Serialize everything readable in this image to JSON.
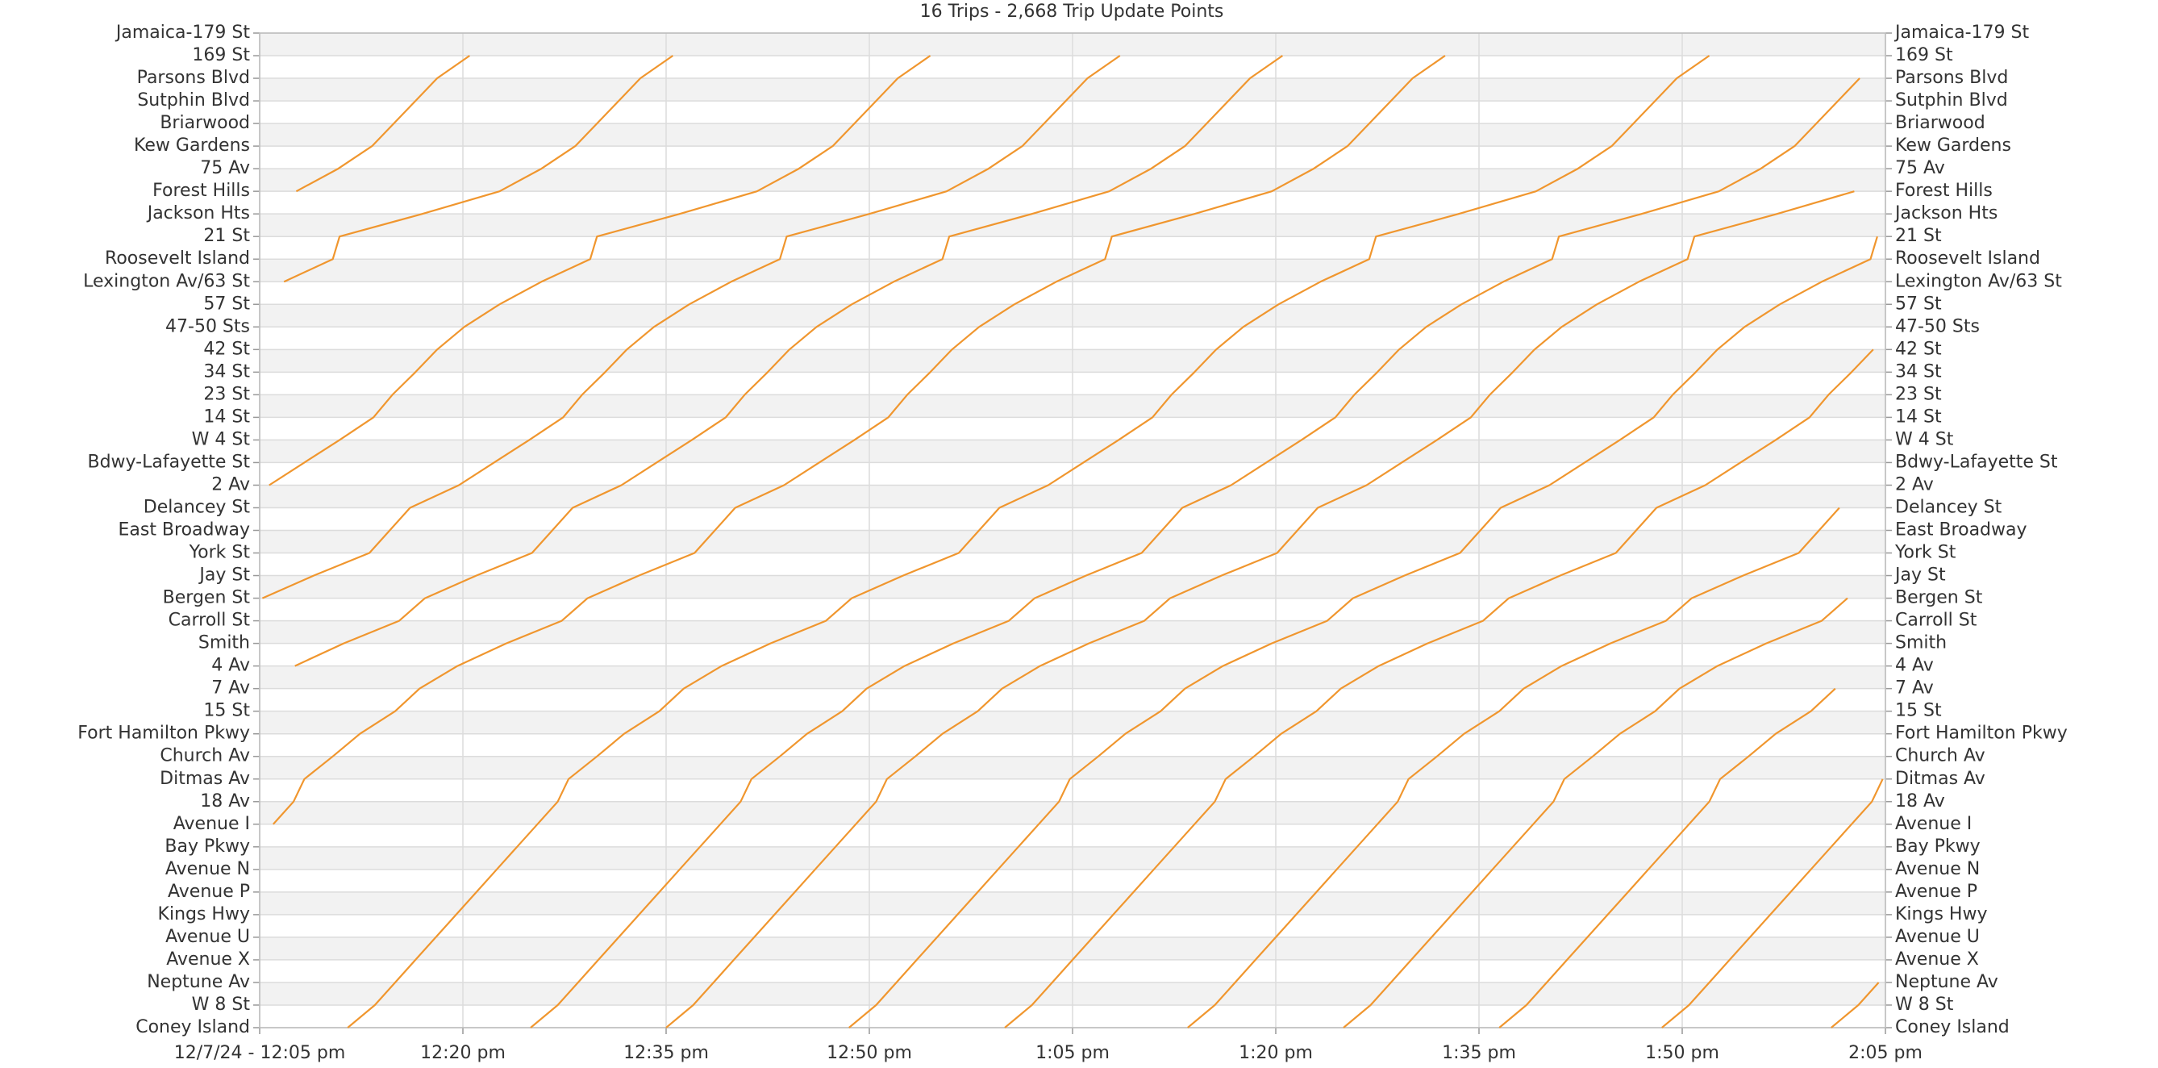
{
  "chart_data": {
    "type": "line",
    "title": "16 Trips - 2,668 Trip Update Points",
    "color": "#f0962e",
    "grid": true,
    "xlim": [
      725,
      845
    ],
    "xticks": [
      {
        "value": 725,
        "label": "12/7/24 - 12:05 pm"
      },
      {
        "value": 740,
        "label": "12:20 pm"
      },
      {
        "value": 755,
        "label": "12:35 pm"
      },
      {
        "value": 770,
        "label": "12:50 pm"
      },
      {
        "value": 785,
        "label": "1:05 pm"
      },
      {
        "value": 800,
        "label": "1:20 pm"
      },
      {
        "value": 815,
        "label": "1:35 pm"
      },
      {
        "value": 830,
        "label": "1:50 pm"
      },
      {
        "value": 845,
        "label": "2:05 pm"
      }
    ],
    "ylim": [
      0,
      44
    ],
    "yticks": [
      {
        "value": 0,
        "label": "Coney Island"
      },
      {
        "value": 1,
        "label": "W 8 St"
      },
      {
        "value": 2,
        "label": "Neptune Av"
      },
      {
        "value": 3,
        "label": "Avenue X"
      },
      {
        "value": 4,
        "label": "Avenue U"
      },
      {
        "value": 5,
        "label": "Kings Hwy"
      },
      {
        "value": 6,
        "label": "Avenue P"
      },
      {
        "value": 7,
        "label": "Avenue N"
      },
      {
        "value": 8,
        "label": "Bay Pkwy"
      },
      {
        "value": 9,
        "label": "Avenue I"
      },
      {
        "value": 10,
        "label": "18 Av"
      },
      {
        "value": 11,
        "label": "Ditmas Av"
      },
      {
        "value": 12,
        "label": "Church Av"
      },
      {
        "value": 13,
        "label": "Fort Hamilton Pkwy"
      },
      {
        "value": 14,
        "label": "15 St"
      },
      {
        "value": 15,
        "label": "7 Av"
      },
      {
        "value": 16,
        "label": "4 Av"
      },
      {
        "value": 17,
        "label": "Smith"
      },
      {
        "value": 18,
        "label": "Carroll St"
      },
      {
        "value": 19,
        "label": "Bergen St"
      },
      {
        "value": 20,
        "label": "Jay St"
      },
      {
        "value": 21,
        "label": "York St"
      },
      {
        "value": 22,
        "label": "East Broadway"
      },
      {
        "value": 23,
        "label": "Delancey St"
      },
      {
        "value": 24,
        "label": "2 Av"
      },
      {
        "value": 25,
        "label": "Bdwy-Lafayette St"
      },
      {
        "value": 26,
        "label": "W 4 St"
      },
      {
        "value": 27,
        "label": "14 St"
      },
      {
        "value": 28,
        "label": "23 St"
      },
      {
        "value": 29,
        "label": "34 St"
      },
      {
        "value": 30,
        "label": "42 St"
      },
      {
        "value": 31,
        "label": "47-50 Sts"
      },
      {
        "value": 32,
        "label": "57 St"
      },
      {
        "value": 33,
        "label": "Lexington Av/63 St"
      },
      {
        "value": 34,
        "label": "Roosevelt Island"
      },
      {
        "value": 35,
        "label": "21 St"
      },
      {
        "value": 36,
        "label": "Jackson Hts"
      },
      {
        "value": 37,
        "label": "Forest Hills"
      },
      {
        "value": 38,
        "label": "75 Av"
      },
      {
        "value": 39,
        "label": "Kew Gardens"
      },
      {
        "value": 40,
        "label": "Briarwood"
      },
      {
        "value": 41,
        "label": "Sutphin Blvd"
      },
      {
        "value": 42,
        "label": "Parsons Blvd"
      },
      {
        "value": 43,
        "label": "169 St"
      },
      {
        "value": 44,
        "label": "Jamaica-179 St"
      }
    ],
    "series": [
      {
        "x": [
          727.7,
          730.8,
          733.3,
          734.9,
          736.5,
          738.1,
          740.5
        ],
        "values": [
          37,
          38,
          39,
          40,
          41,
          42,
          43
        ]
      },
      {
        "x": [
          726.8,
          730.4,
          730.9,
          737,
          742.7,
          745.8,
          748.3,
          749.9,
          751.5,
          753.1,
          755.5
        ],
        "values": [
          33,
          34,
          35,
          36,
          37,
          38,
          39,
          40,
          41,
          42,
          43
        ]
      },
      {
        "x": [
          725.7,
          728.3,
          730.9,
          733.4,
          734.8,
          736.5,
          738.1,
          740.1,
          742.7,
          745.8,
          749.4,
          749.9,
          756,
          761.7,
          764.8,
          767.3,
          768.9,
          770.5,
          772.1,
          774.5
        ],
        "values": [
          24,
          25,
          26,
          27,
          28,
          29,
          30,
          31,
          32,
          33,
          34,
          35,
          36,
          37,
          38,
          39,
          40,
          41,
          42,
          43
        ]
      },
      {
        "x": [
          725.2,
          729,
          733.1,
          734.6,
          736.1,
          739.7,
          742.3,
          744.9,
          747.4,
          748.8,
          750.5,
          752.1,
          754.1,
          756.7,
          759.8,
          763.4,
          763.9,
          770,
          775.7,
          778.8,
          781.3,
          782.9,
          784.5,
          786.1,
          788.5
        ],
        "values": [
          19,
          20,
          21,
          22,
          23,
          24,
          25,
          26,
          27,
          28,
          29,
          30,
          31,
          32,
          33,
          34,
          35,
          36,
          37,
          38,
          39,
          40,
          41,
          42,
          43
        ]
      },
      {
        "x": [
          727.6,
          731.2,
          735.3,
          737.2,
          741,
          745.1,
          746.6,
          748.1,
          751.7,
          754.3,
          756.9,
          759.4,
          760.8,
          762.5,
          764.1,
          766.1,
          768.7,
          771.8,
          775.4,
          775.9,
          782,
          787.7,
          790.8,
          793.3,
          794.9,
          796.5,
          798.1,
          800.5
        ],
        "values": [
          16,
          17,
          18,
          19,
          20,
          21,
          22,
          23,
          24,
          25,
          26,
          27,
          28,
          29,
          30,
          31,
          32,
          33,
          34,
          35,
          36,
          37,
          38,
          39,
          40,
          41,
          42,
          43
        ]
      },
      {
        "x": [
          726,
          727.5,
          728.3,
          730.4,
          732.4,
          735,
          736.8,
          739.6,
          743.2,
          747.3,
          749.2,
          753,
          757.1,
          758.6,
          760.1,
          763.7,
          766.3,
          768.9,
          771.4,
          772.8,
          774.5,
          776.1,
          778.1,
          780.7,
          783.8,
          787.4,
          787.9,
          794,
          799.7,
          802.8,
          805.3,
          806.9,
          808.5,
          810.1,
          812.5
        ],
        "values": [
          9,
          10,
          11,
          12,
          13,
          14,
          15,
          16,
          17,
          18,
          19,
          20,
          21,
          22,
          23,
          24,
          25,
          26,
          27,
          28,
          29,
          30,
          31,
          32,
          33,
          34,
          35,
          36,
          37,
          38,
          39,
          40,
          41,
          42,
          43
        ]
      },
      {
        "x": [
          731.5,
          733.5,
          735,
          736.5,
          738,
          739.5,
          741,
          742.5,
          744,
          745.5,
          747,
          747.8,
          749.9,
          751.9,
          754.5,
          756.3,
          759.1,
          762.7,
          766.8,
          768.7,
          772.5,
          776.6,
          778.1,
          779.6,
          783.2,
          785.8,
          788.4,
          790.9,
          792.3,
          794,
          795.6,
          797.6,
          800.2,
          803.3,
          806.9,
          807.4,
          813.5,
          819.2,
          822.3,
          824.8,
          826.4,
          828,
          829.6,
          832
        ],
        "values": [
          0,
          1,
          2,
          3,
          4,
          5,
          6,
          7,
          8,
          9,
          10,
          11,
          12,
          13,
          14,
          15,
          16,
          17,
          18,
          19,
          20,
          21,
          22,
          23,
          24,
          25,
          26,
          27,
          28,
          29,
          30,
          31,
          32,
          33,
          34,
          35,
          36,
          37,
          38,
          39,
          40,
          41,
          42,
          43
        ]
      },
      {
        "x": [
          745,
          747,
          748.5,
          750,
          751.5,
          753,
          754.5,
          756,
          757.5,
          759,
          760.5,
          761.3,
          763.4,
          765.4,
          768,
          769.8,
          772.6,
          776.2,
          780.3,
          782.2,
          786,
          790.1,
          791.6,
          793.1,
          796.7,
          799.3,
          801.9,
          804.4,
          805.8,
          807.5,
          809.1,
          811.1,
          813.7,
          816.8,
          820.4,
          820.9,
          827,
          832.7,
          835.8,
          838.3,
          839.9,
          841.5,
          843.1
        ],
        "values": [
          0,
          1,
          2,
          3,
          4,
          5,
          6,
          7,
          8,
          9,
          10,
          11,
          12,
          13,
          14,
          15,
          16,
          17,
          18,
          19,
          20,
          21,
          22,
          23,
          24,
          25,
          26,
          27,
          28,
          29,
          30,
          31,
          32,
          33,
          34,
          35,
          36,
          37,
          38,
          39,
          40,
          41,
          42
        ]
      },
      {
        "x": [
          755,
          757,
          758.5,
          760,
          761.5,
          763,
          764.5,
          766,
          767.5,
          769,
          770.5,
          771.3,
          773.4,
          775.4,
          778,
          779.8,
          782.6,
          786.2,
          790.3,
          792.2,
          796,
          800.1,
          801.6,
          803.1,
          806.7,
          809.3,
          811.9,
          814.4,
          815.8,
          817.5,
          819.1,
          821.1,
          823.7,
          826.8,
          830.4,
          830.9,
          837,
          842.7
        ],
        "values": [
          0,
          1,
          2,
          3,
          4,
          5,
          6,
          7,
          8,
          9,
          10,
          11,
          12,
          13,
          14,
          15,
          16,
          17,
          18,
          19,
          20,
          21,
          22,
          23,
          24,
          25,
          26,
          27,
          28,
          29,
          30,
          31,
          32,
          33,
          34,
          35,
          36,
          37
        ]
      },
      {
        "x": [
          768.5,
          770.5,
          772,
          773.5,
          775,
          776.5,
          778,
          779.5,
          781,
          782.5,
          784,
          784.8,
          786.9,
          788.9,
          791.5,
          793.3,
          796.1,
          799.7,
          803.8,
          805.7,
          809.5,
          813.6,
          815.1,
          816.6,
          820.2,
          822.8,
          825.4,
          827.9,
          829.3,
          831,
          832.6,
          834.6,
          837.2,
          840.3,
          843.9,
          844.4
        ],
        "values": [
          0,
          1,
          2,
          3,
          4,
          5,
          6,
          7,
          8,
          9,
          10,
          11,
          12,
          13,
          14,
          15,
          16,
          17,
          18,
          19,
          20,
          21,
          22,
          23,
          24,
          25,
          26,
          27,
          28,
          29,
          30,
          31,
          32,
          33,
          34,
          35
        ]
      },
      {
        "x": [
          780,
          782,
          783.5,
          785,
          786.5,
          788,
          789.5,
          791,
          792.5,
          794,
          795.5,
          796.3,
          798.4,
          800.4,
          803,
          804.8,
          807.6,
          811.2,
          815.3,
          817.2,
          821,
          825.1,
          826.6,
          828.1,
          831.7,
          834.3,
          836.9,
          839.4,
          840.8,
          842.5,
          844.1
        ],
        "values": [
          0,
          1,
          2,
          3,
          4,
          5,
          6,
          7,
          8,
          9,
          10,
          11,
          12,
          13,
          14,
          15,
          16,
          17,
          18,
          19,
          20,
          21,
          22,
          23,
          24,
          25,
          26,
          27,
          28,
          29,
          30
        ]
      },
      {
        "x": [
          793.5,
          795.5,
          797,
          798.5,
          800,
          801.5,
          803,
          804.5,
          806,
          807.5,
          809,
          809.8,
          811.9,
          813.9,
          816.5,
          818.3,
          821.1,
          824.7,
          828.8,
          830.7,
          834.5,
          838.6,
          840.1,
          841.6
        ],
        "values": [
          0,
          1,
          2,
          3,
          4,
          5,
          6,
          7,
          8,
          9,
          10,
          11,
          12,
          13,
          14,
          15,
          16,
          17,
          18,
          19,
          20,
          21,
          22,
          23
        ]
      },
      {
        "x": [
          805,
          807,
          808.5,
          810,
          811.5,
          813,
          814.5,
          816,
          817.5,
          819,
          820.5,
          821.3,
          823.4,
          825.4,
          828,
          829.8,
          832.6,
          836.2,
          840.3,
          842.2
        ],
        "values": [
          0,
          1,
          2,
          3,
          4,
          5,
          6,
          7,
          8,
          9,
          10,
          11,
          12,
          13,
          14,
          15,
          16,
          17,
          18,
          19
        ]
      },
      {
        "x": [
          816.5,
          818.5,
          820,
          821.5,
          823,
          824.5,
          826,
          827.5,
          829,
          830.5,
          832,
          832.8,
          834.9,
          836.9,
          839.5,
          841.3
        ],
        "values": [
          0,
          1,
          2,
          3,
          4,
          5,
          6,
          7,
          8,
          9,
          10,
          11,
          12,
          13,
          14,
          15
        ]
      },
      {
        "x": [
          828.5,
          830.5,
          832,
          833.5,
          835,
          836.5,
          838,
          839.5,
          841,
          842.5,
          844,
          844.8
        ],
        "values": [
          0,
          1,
          2,
          3,
          4,
          5,
          6,
          7,
          8,
          9,
          10,
          11
        ]
      },
      {
        "x": [
          841,
          843,
          844.5
        ],
        "values": [
          0,
          1,
          2
        ]
      }
    ]
  }
}
